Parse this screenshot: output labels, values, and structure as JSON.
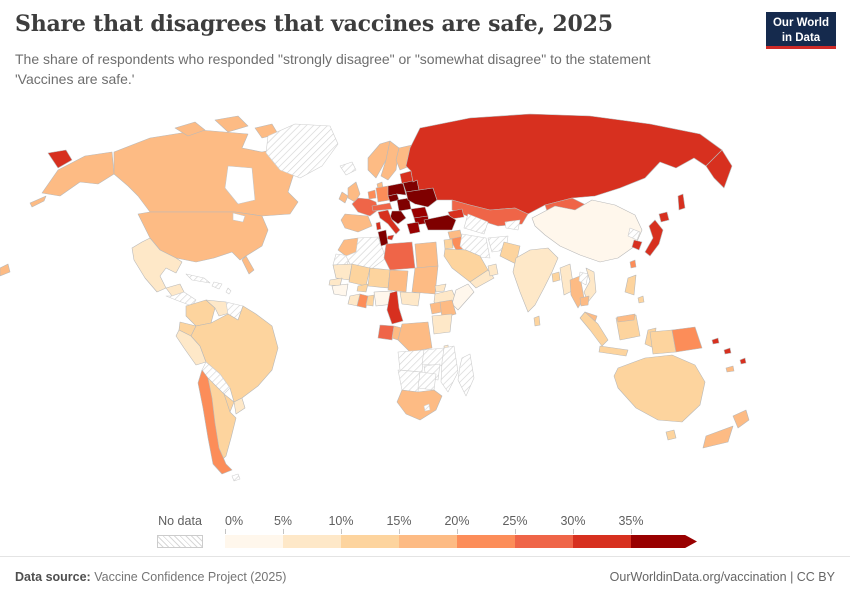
{
  "header": {
    "title": "Share that disagrees that vaccines are safe, 2025",
    "subtitle": "The share of respondents who responded \"strongly disagree\" or \"somewhat disagree\" to the statement 'Vaccines are safe.'",
    "logo": {
      "line1": "Our World",
      "line2": "in Data",
      "bg": "#152a4d",
      "accent": "#cf2a27"
    }
  },
  "legend": {
    "no_data_label": "No data",
    "tick_labels": [
      "0%",
      "5%",
      "10%",
      "15%",
      "20%",
      "25%",
      "30%",
      "35%"
    ]
  },
  "footer": {
    "source_label": "Data source:",
    "source_value": " Vaccine Confidence Project (2025)",
    "credit": "OurWorldinData.org/vaccination | CC BY"
  },
  "chart_data": {
    "type": "choropleth_map",
    "title": "Share that disagrees that vaccines are safe, 2025",
    "unit": "%",
    "bin_edges_percent": [
      0,
      5,
      10,
      15,
      20,
      25,
      30,
      35
    ],
    "bin_colors": [
      "#fff7ec",
      "#fee8c8",
      "#fdd49e",
      "#fdbb84",
      "#fc8d59",
      "#ef6548",
      "#d7301f",
      "#990000",
      "#7f0000"
    ],
    "no_data_style": "hatched",
    "regions": {
      "russia": 6,
      "canada": 3,
      "usa": 3,
      "greenland": "nd",
      "iceland": "nd",
      "mexico": 1,
      "central-america": "nd",
      "cuba": "nd",
      "hispaniola": "nd",
      "antilles": "nd",
      "colombia": 2,
      "venezuela": 1,
      "guyanas": "nd",
      "ecuador": 2,
      "peru": 1,
      "brazil": 2,
      "bolivia": "nd",
      "paraguay": 2,
      "chile": 4,
      "argentina": 2,
      "uruguay": 1,
      "falkland-islands": "nd",
      "norway": 3,
      "sweden": 3,
      "finland": 3,
      "united-kingdom": 3,
      "ireland": 3,
      "denmark": 3,
      "benelux": 4,
      "germany": 4,
      "france": 5,
      "iberia": 3,
      "alpine": 5,
      "czechia": 8,
      "poland": 8,
      "hungary-slovakia": 8,
      "baltics": 6,
      "belarus": 8,
      "ukraine": 8,
      "romania": 7,
      "balkans": 8,
      "bulgaria": 7,
      "greece": 7,
      "italy": 6,
      "kazakhstan": 5,
      "mongolia": 5,
      "central-asia": "nd",
      "kyrgyzstan": "nd",
      "caucasus": 6,
      "turkey": 8,
      "syria": 3,
      "iraq": 4,
      "iran": "nd",
      "afghanistan": "nd",
      "pakistan": 2,
      "levant": 2,
      "saudi-arabia": 2,
      "yemen": 1,
      "oman": 1,
      "china": 0,
      "north-korea": "nd",
      "south-korea": 6,
      "japan": 6,
      "taiwan": 4,
      "india": 1,
      "bangladesh": 2,
      "myanmar": 1,
      "thailand": 3,
      "laos": "nd",
      "vietnam": 1,
      "cambodia": 3,
      "malaysia": 3,
      "indonesia": 2,
      "philippines": 2,
      "papua-new-guinea": 4,
      "sri-lanka": 2,
      "australia": 2,
      "new-zealand": 3,
      "solomon-islands": 6,
      "fiji": 6,
      "new-caledonia": 3,
      "morocco": 3,
      "western-sahara": "nd",
      "algeria": "nd",
      "tunisia": 8,
      "libya": 5,
      "egypt": 3,
      "mauritania": 1,
      "senegal": 1,
      "guinea": 0,
      "mali": 2,
      "burkina-faso": 2,
      "niger": 2,
      "chad": 3,
      "sudan": 3,
      "eritrea": 1,
      "ethiopia": 1,
      "somalia": 0,
      "cote-divoire": 1,
      "ghana": 4,
      "togo-benin": 2,
      "nigeria": 0,
      "cameroon": 6,
      "central-african-republic": 1,
      "gabon": 5,
      "congo": 3,
      "drc": 3,
      "uganda": 3,
      "kenya": 3,
      "tanzania": 1,
      "angola": "nd",
      "zambia": "nd",
      "mozambique": "nd",
      "zimbabwe": "nd",
      "namibia": "nd",
      "botswana": "nd",
      "malawi": 1,
      "madagascar": "nd",
      "south-africa": 3,
      "lesotho": "nd"
    }
  }
}
